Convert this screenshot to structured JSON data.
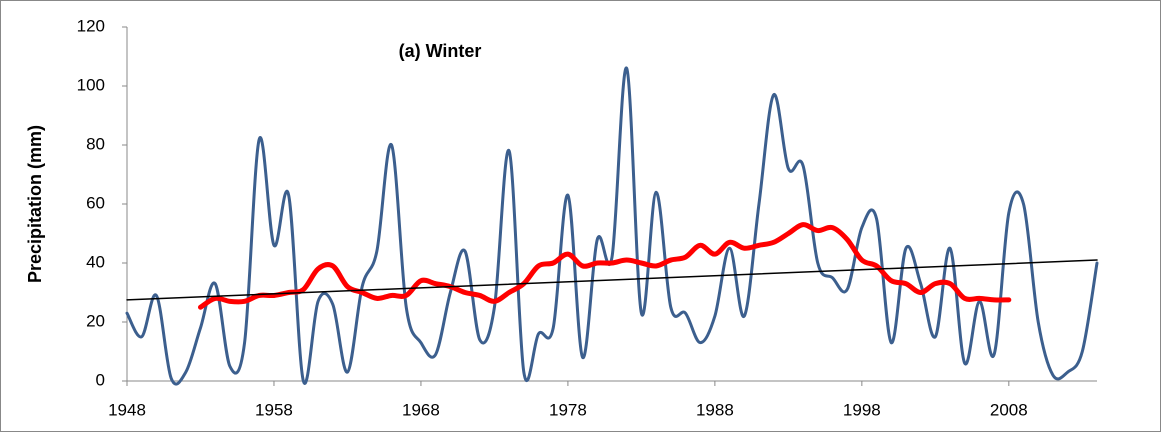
{
  "chart_data": {
    "type": "line",
    "title": "(a) Winter",
    "y_label": "Precipitation (mm)",
    "xlim": [
      1948,
      2014
    ],
    "xticks": [
      1948,
      1958,
      1968,
      1978,
      1988,
      1998,
      2008
    ],
    "ylim": [
      0,
      120
    ],
    "yticks": [
      0,
      20,
      40,
      60,
      80,
      100,
      120
    ],
    "grid": false,
    "series": [
      {
        "color": "#3c5f8e",
        "width": 3,
        "smooth": true,
        "x": [
          1948,
          1949,
          1950,
          1951,
          1952,
          1953,
          1954,
          1955,
          1956,
          1957,
          1958,
          1959,
          1960,
          1961,
          1962,
          1963,
          1964,
          1965,
          1966,
          1967,
          1968,
          1969,
          1970,
          1971,
          1972,
          1973,
          1974,
          1975,
          1976,
          1977,
          1978,
          1979,
          1980,
          1981,
          1982,
          1983,
          1984,
          1985,
          1986,
          1987,
          1988,
          1989,
          1990,
          1991,
          1992,
          1993,
          1994,
          1995,
          1996,
          1997,
          1998,
          1999,
          2000,
          2001,
          2002,
          2003,
          2004,
          2005,
          2006,
          2007,
          2008,
          2009,
          2010,
          2011,
          2012,
          2013,
          2014
        ],
        "values": [
          23,
          15,
          29,
          1,
          3,
          18,
          33,
          5,
          13,
          82,
          46,
          63,
          0,
          27,
          26,
          3,
          32,
          44,
          80,
          25,
          13,
          9,
          30,
          44,
          14,
          25,
          78,
          3,
          16,
          18,
          63,
          8,
          48,
          42,
          106,
          23,
          64,
          25,
          23,
          13,
          22,
          45,
          22,
          60,
          97,
          72,
          73,
          40,
          35,
          31,
          52,
          55,
          13,
          45,
          33,
          15,
          45,
          6,
          27,
          9,
          57,
          60,
          20,
          2,
          3,
          10,
          40
        ]
      },
      {
        "color": "#ff0000",
        "width": 5,
        "smooth": true,
        "x": [
          1953,
          1954,
          1955,
          1956,
          1957,
          1958,
          1959,
          1960,
          1961,
          1962,
          1963,
          1964,
          1965,
          1966,
          1967,
          1968,
          1969,
          1970,
          1971,
          1972,
          1973,
          1974,
          1975,
          1976,
          1977,
          1978,
          1979,
          1980,
          1981,
          1982,
          1983,
          1984,
          1985,
          1986,
          1987,
          1988,
          1989,
          1990,
          1991,
          1992,
          1993,
          1994,
          1995,
          1996,
          1997,
          1998,
          1999,
          2000,
          2001,
          2002,
          2003,
          2004,
          2005,
          2006,
          2007,
          2008
        ],
        "values": [
          25,
          28,
          27,
          27,
          29,
          29,
          30,
          31,
          38,
          39,
          32,
          30,
          28,
          29,
          29,
          34,
          33,
          32,
          30,
          29,
          27,
          30,
          33,
          39,
          40,
          43,
          39,
          40,
          40,
          41,
          40,
          39,
          41,
          42,
          46,
          43,
          47,
          45,
          46,
          47,
          50,
          53,
          51,
          52,
          48,
          41,
          39,
          34,
          33,
          30,
          33,
          33,
          28,
          28,
          27.5,
          27.5
        ]
      },
      {
        "color": "#000000",
        "width": 1.5,
        "smooth": false,
        "x": [
          1948,
          2014
        ],
        "values": [
          27.5,
          41
        ]
      }
    ]
  }
}
